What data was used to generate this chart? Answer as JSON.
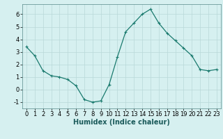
{
  "x": [
    0,
    1,
    2,
    3,
    4,
    5,
    6,
    7,
    8,
    9,
    10,
    11,
    12,
    13,
    14,
    15,
    16,
    17,
    18,
    19,
    20,
    21,
    22,
    23
  ],
  "y": [
    3.4,
    2.7,
    1.5,
    1.1,
    1.0,
    0.8,
    0.3,
    -0.8,
    -1.0,
    -0.9,
    0.4,
    2.6,
    4.6,
    5.3,
    6.0,
    6.4,
    5.3,
    4.5,
    3.9,
    3.3,
    2.7,
    1.6,
    1.5,
    1.6
  ],
  "line_color": "#1a7a6e",
  "marker": "+",
  "marker_size": 3,
  "marker_linewidth": 0.8,
  "line_width": 0.9,
  "bg_color": "#d6f0f0",
  "grid_color": "#b8d8d8",
  "xlabel": "Humidex (Indice chaleur)",
  "xlim": [
    -0.5,
    23.5
  ],
  "ylim": [
    -1.5,
    6.8
  ],
  "yticks": [
    -1,
    0,
    1,
    2,
    3,
    4,
    5,
    6
  ],
  "xticks": [
    0,
    1,
    2,
    3,
    4,
    5,
    6,
    7,
    8,
    9,
    10,
    11,
    12,
    13,
    14,
    15,
    16,
    17,
    18,
    19,
    20,
    21,
    22,
    23
  ],
  "xlabel_fontsize": 7,
  "tick_fontsize": 6,
  "spine_color": "#558888"
}
